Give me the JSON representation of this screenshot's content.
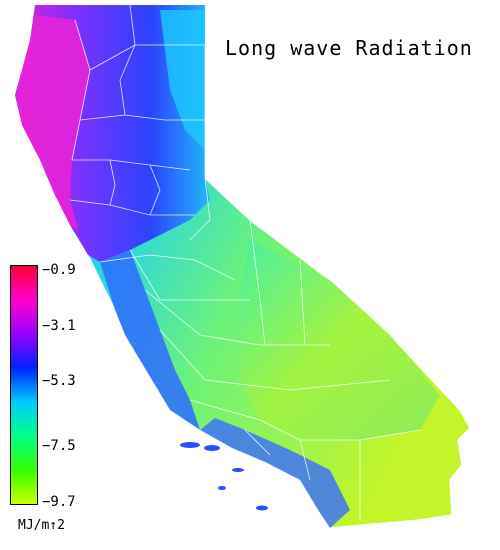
{
  "title": "Long wave Radiation",
  "legend": {
    "unit": "MJ/m↑2",
    "ticks": [
      "−0.9",
      "−3.1",
      "−5.3",
      "−7.5",
      "−9.7"
    ],
    "gradient_colors": [
      "#ff0033",
      "#ff00cc",
      "#9900ff",
      "#0022ff",
      "#00ccff",
      "#00ff88",
      "#33ff00",
      "#ccff00"
    ]
  },
  "colors": {
    "north_coast": "#e01ad8",
    "north_interior": "#2b3dff",
    "northeast": "#1fb6ff",
    "central": "#23d6e6",
    "desert": "#b8f22a",
    "south_coast": "#3a6bff",
    "county_lines": "#ffffff"
  }
}
